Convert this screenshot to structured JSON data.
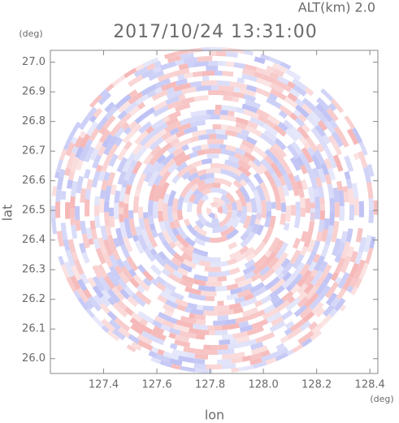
{
  "chart_data": {
    "type": "heatmap",
    "title": "2017/10/24 13:31:00",
    "subtitle": "ALT(km) 2.0",
    "x_label": "lon",
    "x_unit": "(deg)",
    "y_label": "lat",
    "y_unit": "(deg)",
    "xlim": [
      127.2,
      128.43
    ],
    "ylim": [
      25.95,
      27.04
    ],
    "xticks": [
      127.4,
      127.6,
      127.8,
      {
        "value": 128,
        "label": "128.0"
      },
      128.2,
      128.4
    ],
    "yticks": [
      {
        "value": 26,
        "label": "26.0"
      },
      26.1,
      26.2,
      26.3,
      26.4,
      26.5,
      26.6,
      26.7,
      26.8,
      26.9,
      {
        "value": 27,
        "label": "27.0"
      }
    ],
    "colors": [
      "#f5b3b3",
      "#b9bdf3"
    ]
  }
}
